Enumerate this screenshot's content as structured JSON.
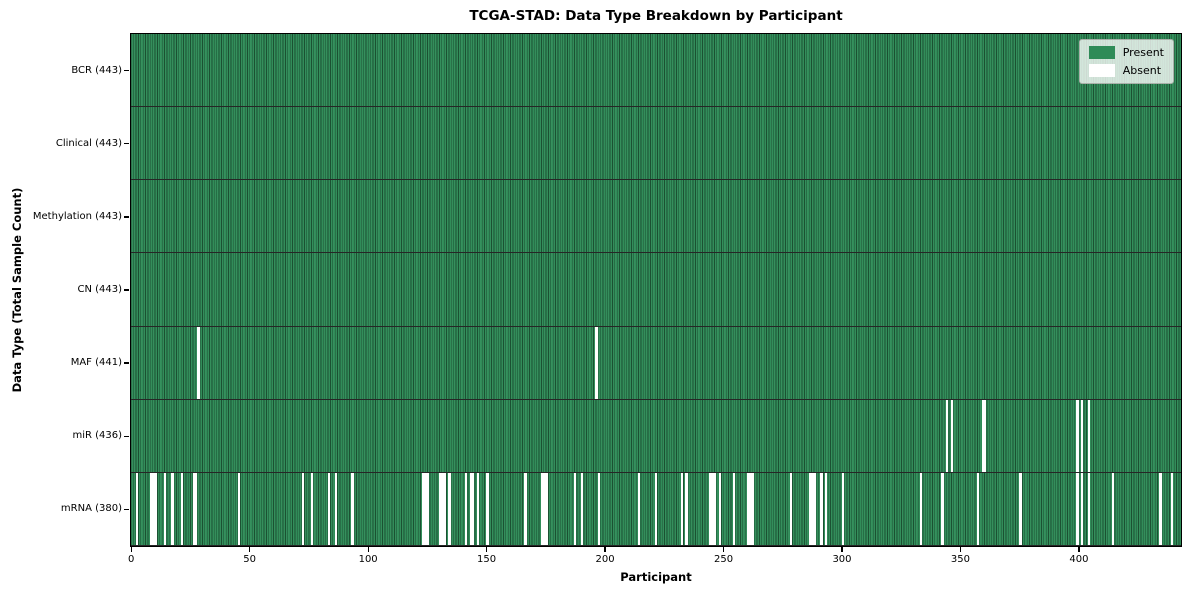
{
  "title": "TCGA-STAD: Data Type Breakdown by Participant",
  "legend": {
    "present_label": "Present",
    "absent_label": "Absent"
  },
  "colors": {
    "present": "#2e8b57",
    "absent": "#ffffff",
    "edge": "#000000"
  },
  "chart_data": {
    "type": "heatmap",
    "title": "TCGA-STAD: Data Type Breakdown by Participant",
    "xlabel": "Participant",
    "ylabel": "Data Type (Total Sample Count)",
    "x_range": [
      0,
      443
    ],
    "x_ticks": [
      0,
      50,
      100,
      150,
      200,
      250,
      300,
      350,
      400
    ],
    "grid": false,
    "legend_position": "upper right",
    "legend_entries": [
      {
        "label": "Present",
        "color": "#2e8b57"
      },
      {
        "label": "Absent",
        "color": "#ffffff"
      }
    ],
    "rows": [
      {
        "label": "BCR (443)",
        "data_type": "BCR",
        "total_samples": 443,
        "absent_participants": []
      },
      {
        "label": "Clinical (443)",
        "data_type": "Clinical",
        "total_samples": 443,
        "absent_participants": []
      },
      {
        "label": "Methylation (443)",
        "data_type": "Methylation",
        "total_samples": 443,
        "absent_participants": []
      },
      {
        "label": "CN (443)",
        "data_type": "CN",
        "total_samples": 443,
        "absent_participants": []
      },
      {
        "label": "MAF (441)",
        "data_type": "MAF",
        "total_samples": 441,
        "absent_participants": [
          28,
          196
        ]
      },
      {
        "label": "miR (436)",
        "data_type": "miR",
        "total_samples": 436,
        "absent_participants": [
          344,
          346,
          359,
          360,
          399,
          401,
          404
        ]
      },
      {
        "label": "mRNA (380)",
        "data_type": "mRNA",
        "total_samples": 380,
        "absent_participants": [
          2,
          8,
          9,
          10,
          14,
          17,
          21,
          26,
          27,
          45,
          72,
          76,
          83,
          86,
          93,
          123,
          124,
          125,
          130,
          131,
          132,
          134,
          141,
          143,
          144,
          146,
          150,
          166,
          173,
          174,
          175,
          187,
          190,
          197,
          214,
          221,
          232,
          234,
          244,
          245,
          246,
          248,
          254,
          260,
          261,
          262,
          278,
          286,
          287,
          288,
          291,
          293,
          300,
          333,
          342,
          357,
          375,
          399,
          401,
          404,
          414,
          434,
          439
        ]
      }
    ]
  }
}
